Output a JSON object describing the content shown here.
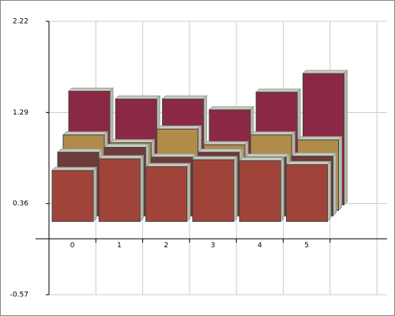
{
  "chart_data": {
    "type": "bar3d",
    "categories": [
      "0",
      "1",
      "2",
      "3",
      "4",
      "5"
    ],
    "series": [
      {
        "color": "#8b2846",
        "values": [
          1.16,
          1.08,
          1.08,
          0.97,
          1.15,
          1.34
        ]
      },
      {
        "color": "#b08b4a",
        "values": [
          0.77,
          0.69,
          0.83,
          0.67,
          0.77,
          0.72
        ]
      },
      {
        "color": "#6e3a3a",
        "values": [
          0.65,
          0.7,
          0.6,
          0.65,
          0.6,
          0.61
        ]
      },
      {
        "color": "#a0443a",
        "values": [
          0.52,
          0.64,
          0.56,
          0.63,
          0.62,
          0.58
        ]
      }
    ],
    "ylim": [
      -0.57,
      2.22
    ],
    "yticks": [
      -0.57,
      0.36,
      1.29,
      2.22
    ],
    "grid": true
  }
}
